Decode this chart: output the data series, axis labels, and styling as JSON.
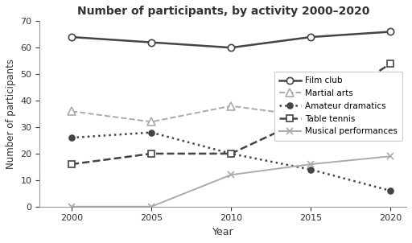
{
  "title": "Number of participants, by activity 2000–2020",
  "xlabel": "Year",
  "ylabel": "Number of participants",
  "years": [
    2000,
    2005,
    2010,
    2015,
    2020
  ],
  "series": {
    "Film club": [
      64,
      62,
      60,
      64,
      66
    ],
    "Martial arts": [
      36,
      32,
      38,
      34,
      36
    ],
    "Amateur dramatics": [
      26,
      28,
      20,
      14,
      6
    ],
    "Table tennis": [
      16,
      20,
      20,
      34,
      54
    ],
    "Musical performances": [
      0,
      0,
      12,
      16,
      19
    ]
  },
  "styles": {
    "Film club": {
      "color": "#444444",
      "linestyle": "-",
      "marker": "o",
      "markersize": 6,
      "markerfacecolor": "white",
      "markeredgecolor": "#444444",
      "linewidth": 1.8
    },
    "Martial arts": {
      "color": "#aaaaaa",
      "linestyle": "--",
      "marker": "^",
      "markersize": 7,
      "markerfacecolor": "white",
      "markeredgecolor": "#aaaaaa",
      "linewidth": 1.4
    },
    "Amateur dramatics": {
      "color": "#444444",
      "linestyle": ":",
      "marker": "o",
      "markersize": 5,
      "markerfacecolor": "#444444",
      "markeredgecolor": "#444444",
      "linewidth": 1.8
    },
    "Table tennis": {
      "color": "#444444",
      "linestyle": "--",
      "marker": "s",
      "markersize": 6,
      "markerfacecolor": "white",
      "markeredgecolor": "#444444",
      "linewidth": 1.8
    },
    "Musical performances": {
      "color": "#aaaaaa",
      "linestyle": "-",
      "marker": "x",
      "markersize": 6,
      "markerfacecolor": "#aaaaaa",
      "markeredgecolor": "#aaaaaa",
      "linewidth": 1.4
    }
  },
  "ylim": [
    0,
    70
  ],
  "yticks": [
    0,
    10,
    20,
    30,
    40,
    50,
    60,
    70
  ],
  "xticks": [
    2000,
    2005,
    2010,
    2015,
    2020
  ],
  "figsize": [
    5.12,
    3.02
  ],
  "dpi": 100
}
